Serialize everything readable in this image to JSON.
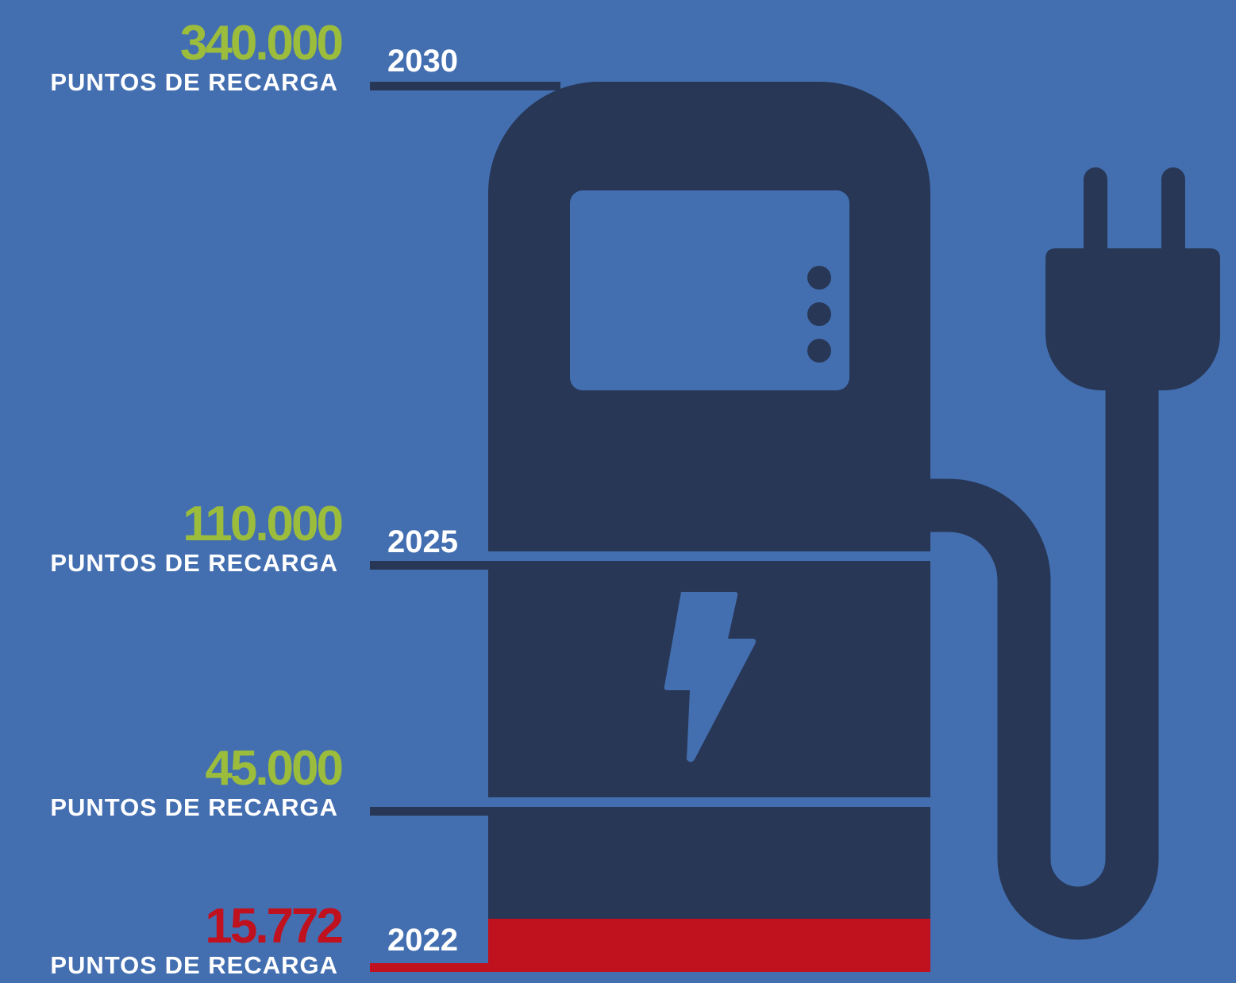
{
  "milestones": [
    {
      "value": "340.000",
      "label": "PUNTOS DE RECARGA",
      "year": "2030"
    },
    {
      "value": "110.000",
      "label": "PUNTOS DE RECARGA",
      "year": "2025"
    },
    {
      "value": "45.000",
      "label": "PUNTOS DE RECARGA"
    },
    {
      "value": "15.772",
      "label": "PUNTOS DE RECARGA",
      "year": "2022"
    }
  ]
}
